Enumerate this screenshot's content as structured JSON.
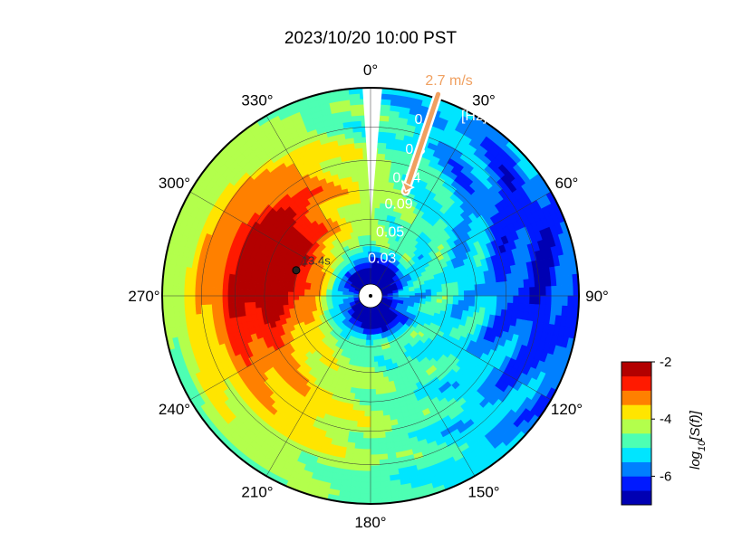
{
  "chart_data": {
    "type": "heatmap",
    "projection": "polar",
    "title": "2023/10/20 10:00 PST",
    "angle_labels": [
      "0°",
      "30°",
      "60°",
      "90°",
      "120°",
      "150°",
      "180°",
      "210°",
      "240°",
      "270°",
      "300°",
      "330°"
    ],
    "angle_values": [
      0,
      30,
      60,
      90,
      120,
      150,
      180,
      210,
      240,
      270,
      300,
      330
    ],
    "radial_labels": [
      "0.03",
      "0.05",
      "0.09",
      "0.14",
      "0.3",
      "0.7"
    ],
    "radial_unit": "[Hz]",
    "colorbar": {
      "label": "log10[S(f)]",
      "label_base": "log",
      "label_sub": "10",
      "label_rest": "[S(f)]",
      "ticks": [
        -2,
        -4,
        -6
      ],
      "tick_labels": [
        "-2",
        "-4",
        "-6"
      ],
      "range": [
        -7,
        -2
      ],
      "colormap": "jet"
    },
    "wind": {
      "label": "2.7 m/s",
      "direction_deg": 20,
      "color": "#f0a060"
    },
    "peak": {
      "label": "13.4s",
      "direction_deg": 289
    },
    "colors": {
      "frame": "#000000",
      "grid": "#333333",
      "wind_arrow": "#f0a060"
    }
  }
}
